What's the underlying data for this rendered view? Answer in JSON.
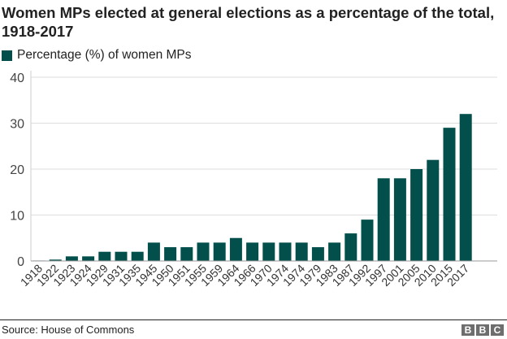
{
  "title": "Women MPs elected at general elections as a percentage of the total, 1918-2017",
  "source": "Source: House of Commons",
  "logo": [
    "B",
    "B",
    "C"
  ],
  "colors": {
    "bar": "#034f4c",
    "grid": "#dddddd"
  },
  "chart_data": {
    "type": "bar",
    "title": "Women MPs elected at general elections as a percentage of the total, 1918-2017",
    "legend": "Percentage (%) of women MPs",
    "legend_position": "top-left",
    "xlabel": "",
    "ylabel": "",
    "ylim": [
      0,
      40
    ],
    "yticks": [
      0,
      10,
      20,
      30,
      40
    ],
    "grid": true,
    "categories": [
      "1918",
      "1922",
      "1923",
      "1924",
      "1929",
      "1931",
      "1935",
      "1945",
      "1950",
      "1951",
      "1955",
      "1959",
      "1964",
      "1966",
      "1970",
      "1974",
      "1974",
      "1979",
      "1983",
      "1987",
      "1992",
      "1997",
      "2001",
      "2005",
      "2010",
      "2015",
      "2017"
    ],
    "values": [
      0.1,
      0.3,
      1,
      1,
      2,
      2,
      2,
      4,
      3,
      3,
      4,
      4,
      5,
      4,
      4,
      4,
      4,
      3,
      4,
      6,
      9,
      18,
      18,
      20,
      22,
      29,
      32
    ]
  }
}
